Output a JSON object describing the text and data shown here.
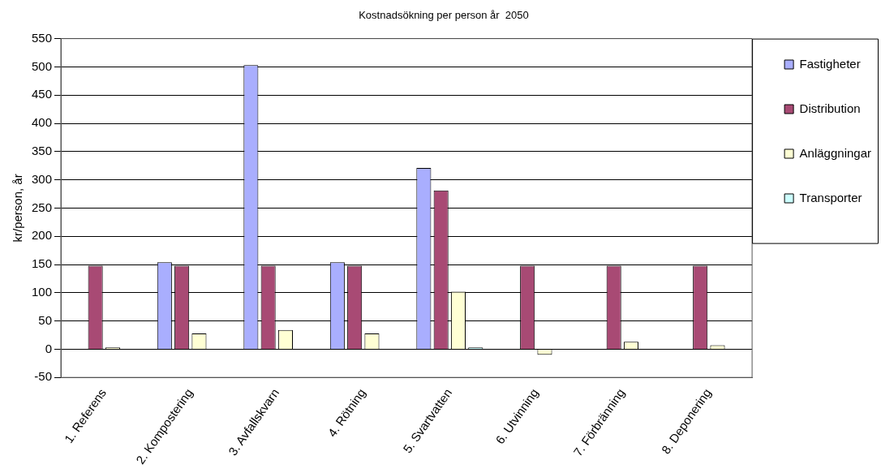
{
  "chart_data": {
    "type": "bar",
    "title": "Kostnadsökning per person år  2050",
    "ylabel": "kr/person, år",
    "categories": [
      "1. Referens",
      "2. Kompostering",
      "3. Avfallskvarn",
      "4. Rötning",
      "5. Svartvatten",
      "6. Utvinning",
      "7. Förbränning",
      "8. Deponering"
    ],
    "series": [
      {
        "name": "Fastigheter",
        "color": "#a9aefe",
        "values": [
          0,
          154,
          503,
          154,
          321,
          0,
          0,
          0
        ]
      },
      {
        "name": "Distribution",
        "color": "#a84a74",
        "values": [
          148,
          148,
          148,
          148,
          281,
          148,
          148,
          148
        ]
      },
      {
        "name": "Anläggningar",
        "color": "#ffffd4",
        "values": [
          3,
          28,
          34,
          28,
          102,
          -10,
          13,
          7
        ]
      },
      {
        "name": "Transporter",
        "color": "#ccffff",
        "values": [
          0,
          0,
          0,
          0,
          3,
          0,
          0,
          0
        ]
      }
    ],
    "ylim": [
      -50,
      550
    ],
    "yticks": [
      -50,
      0,
      50,
      100,
      150,
      200,
      250,
      300,
      350,
      400,
      450,
      500,
      550
    ],
    "grid": "y",
    "legend": "right"
  }
}
